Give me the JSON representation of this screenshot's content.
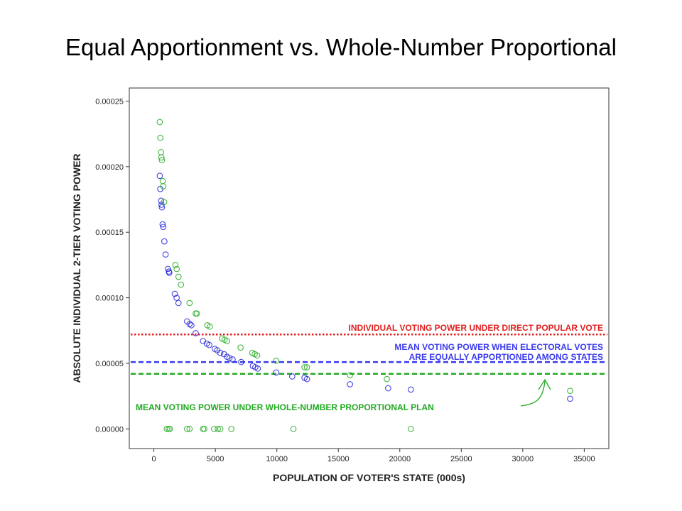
{
  "slide": {
    "title": "Equal Apportionment vs. Whole-Number Proportional"
  },
  "chart_data": {
    "type": "scatter",
    "title": "",
    "xlabel": "POPULATION OF VOTER'S STATE (000s)",
    "ylabel": "ABSOLUTE INDIVIDUAL 2-TIER VOTING POWER",
    "xlim": [
      -2000,
      37000
    ],
    "ylim": [
      -1.5e-05,
      0.00026
    ],
    "xticks": [
      0,
      5000,
      10000,
      15000,
      20000,
      25000,
      30000,
      35000
    ],
    "yticks": [
      0.0,
      5e-05,
      0.0001,
      0.00015,
      0.0002,
      0.00025
    ],
    "ytick_labels": [
      "0.00000",
      "0.00005",
      "0.00010",
      "0.00015",
      "0.00020",
      "0.00025"
    ],
    "grid": false,
    "reference_lines": [
      {
        "label": "INDIVIDUAL VOTING POWER UNDER DIRECT POPULAR VOTE",
        "y": 7.2e-05,
        "color": "#e02020"
      },
      {
        "label": "MEAN VOTING POWER WHEN ELECTORAL VOTES",
        "label2": "ARE EQUALLY APPORTIONED AMONG STATES",
        "y": 5.1e-05,
        "color": "#3a3aee"
      },
      {
        "label": "MEAN VOTING POWER UNDER WHOLE-NUMBER PROPORTIONAL PLAN",
        "y": 4.2e-05,
        "color": "#22aa22"
      }
    ],
    "series": [
      {
        "color": "#2424dd",
        "points": [
          [
            480,
            0.000193
          ],
          [
            520,
            0.000183
          ],
          [
            590,
            0.000174
          ],
          [
            620,
            0.000171
          ],
          [
            650,
            0.000169
          ],
          [
            710,
            0.000156
          ],
          [
            760,
            0.000154
          ],
          [
            850,
            0.000143
          ],
          [
            950,
            0.000133
          ],
          [
            1150,
            0.000122
          ],
          [
            1220,
            0.00012
          ],
          [
            1250,
            0.000119
          ],
          [
            1700,
            0.000103
          ],
          [
            1850,
            0.0001
          ],
          [
            2000,
            9.6e-05
          ],
          [
            2700,
            8.2e-05
          ],
          [
            2900,
            8e-05
          ],
          [
            3050,
            7.9e-05
          ],
          [
            3400,
            7.3e-05
          ],
          [
            4000,
            6.7e-05
          ],
          [
            4300,
            6.5e-05
          ],
          [
            4500,
            6.4e-05
          ],
          [
            4950,
            6.1e-05
          ],
          [
            5150,
            6e-05
          ],
          [
            5400,
            5.8e-05
          ],
          [
            5700,
            5.7e-05
          ],
          [
            5950,
            5.5e-05
          ],
          [
            6150,
            5.4e-05
          ],
          [
            6400,
            5.3e-05
          ],
          [
            7100,
            5.1e-05
          ],
          [
            8050,
            4.8e-05
          ],
          [
            8250,
            4.7e-05
          ],
          [
            8450,
            4.6e-05
          ],
          [
            9950,
            4.3e-05
          ],
          [
            11250,
            4e-05
          ],
          [
            12250,
            3.9e-05
          ],
          [
            12450,
            3.8e-05
          ],
          [
            15950,
            3.4e-05
          ],
          [
            19050,
            3.1e-05
          ],
          [
            20900,
            3e-05
          ],
          [
            33850,
            2.3e-05
          ]
        ]
      },
      {
        "color": "#22aa22",
        "points": [
          [
            480,
            0.000234
          ],
          [
            520,
            0.000222
          ],
          [
            580,
            0.000211
          ],
          [
            610,
            0.000207
          ],
          [
            650,
            0.000205
          ],
          [
            720,
            0.000189
          ],
          [
            760,
            0.000185
          ],
          [
            830,
            0.000173
          ],
          [
            1750,
            0.000125
          ],
          [
            1850,
            0.000122
          ],
          [
            2000,
            0.000116
          ],
          [
            2200,
            0.00011
          ],
          [
            2900,
            9.6e-05
          ],
          [
            3400,
            8.8e-05
          ],
          [
            3500,
            8.8e-05
          ],
          [
            4350,
            7.9e-05
          ],
          [
            4550,
            7.8e-05
          ],
          [
            5550,
            6.9e-05
          ],
          [
            5750,
            6.8e-05
          ],
          [
            5950,
            6.7e-05
          ],
          [
            7050,
            6.2e-05
          ],
          [
            8000,
            5.8e-05
          ],
          [
            8200,
            5.7e-05
          ],
          [
            8400,
            5.6e-05
          ],
          [
            9950,
            5.2e-05
          ],
          [
            12250,
            4.7e-05
          ],
          [
            12450,
            4.7e-05
          ],
          [
            15950,
            4.1e-05
          ],
          [
            18950,
            3.8e-05
          ],
          [
            33850,
            2.9e-05
          ],
          [
            1050,
            0.0
          ],
          [
            1200,
            0.0
          ],
          [
            1300,
            0.0
          ],
          [
            2700,
            0.0
          ],
          [
            2900,
            0.0
          ],
          [
            4000,
            0.0
          ],
          [
            4100,
            0.0
          ],
          [
            4900,
            0.0
          ],
          [
            5200,
            0.0
          ],
          [
            5400,
            0.0
          ],
          [
            6300,
            0.0
          ],
          [
            11350,
            0.0
          ],
          [
            20900,
            0.0
          ]
        ]
      }
    ]
  }
}
